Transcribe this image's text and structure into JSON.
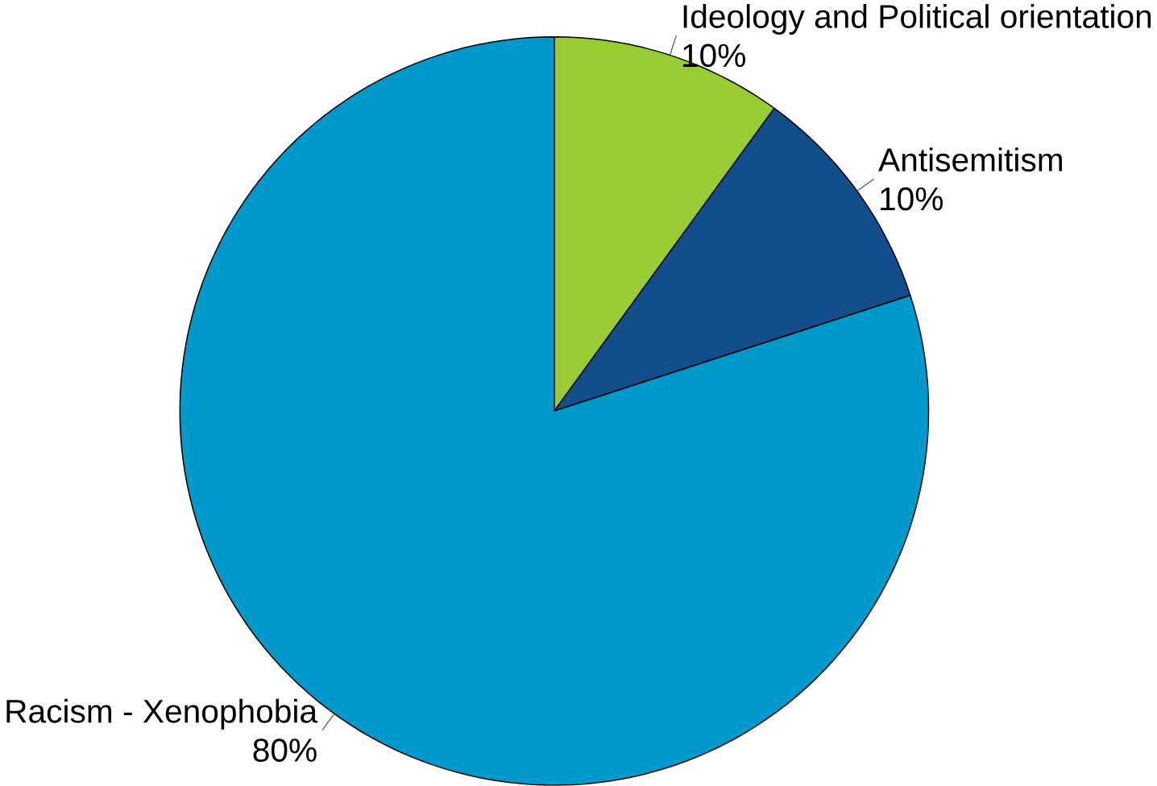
{
  "chart_data": {
    "type": "pie",
    "categories": [
      "Ideology and Political orientation",
      "Antisemitism",
      "Racism - Xenophobia"
    ],
    "values": [
      10,
      10,
      80
    ],
    "value_labels": [
      "10%",
      "10%",
      "80%"
    ],
    "colors": [
      "#99cc33",
      "#114e8b",
      "#0099cc"
    ]
  }
}
